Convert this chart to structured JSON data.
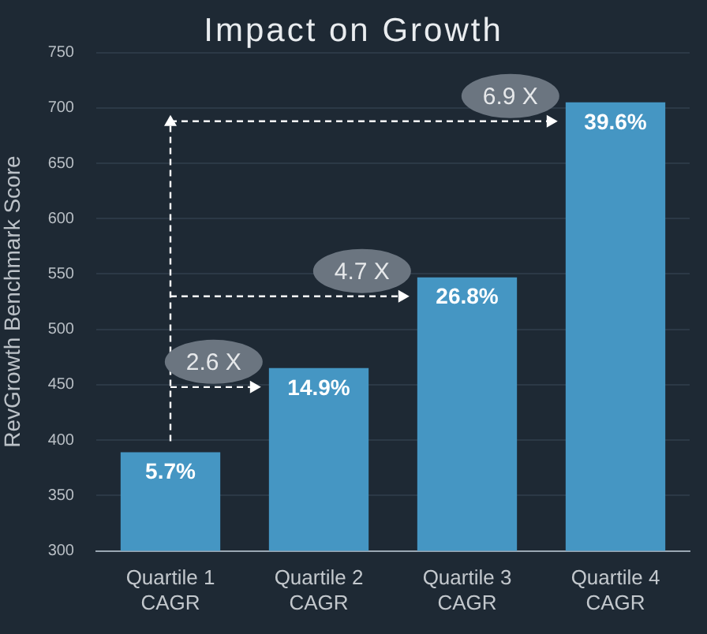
{
  "chart_data": {
    "type": "bar",
    "title": "Impact on Growth",
    "ylabel": "RevGrowth Benchmark Score",
    "categories": [
      "Quartile 1 CAGR",
      "Quartile 2 CAGR",
      "Quartile 3 CAGR",
      "Quartile 4 CAGR"
    ],
    "values": [
      389,
      465,
      547,
      705
    ],
    "color": "#4596c3",
    "ylim": [
      300,
      750
    ],
    "yticks": [
      300,
      350,
      400,
      450,
      500,
      550,
      600,
      650,
      700,
      750
    ],
    "grid": "y",
    "annotations": [
      {
        "text": "5.7%",
        "x": "Quartile 1 CAGR",
        "y": 389
      },
      {
        "text": "14.9%",
        "x": "Quartile 2 CAGR",
        "y": 465
      },
      {
        "text": "26.8%",
        "x": "Quartile 3 CAGR",
        "y": 547
      },
      {
        "text": "39.6%",
        "x": "Quartile 4 CAGR",
        "y": 705
      },
      "2.6 X",
      "4.7 X",
      "6.9 X"
    ]
  }
}
